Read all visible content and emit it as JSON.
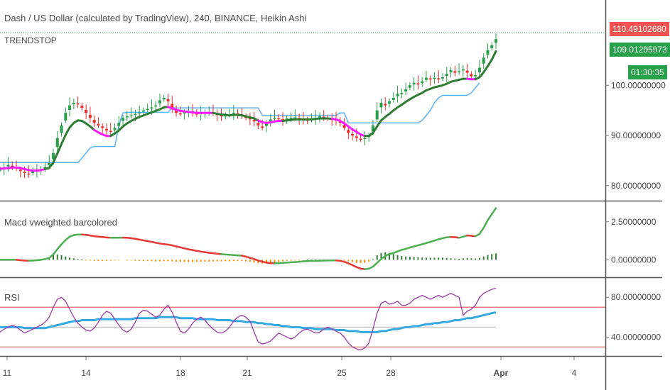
{
  "chart_data": [
    {
      "type": "candlestick",
      "title": "Dash / US Dollar (calculated by TradingView), 240, BINANCE, Heikin Ashi",
      "indicator": "TRENDSTOP",
      "ylim": [
        77,
        117
      ],
      "yticks": [
        {
          "value": 80,
          "label": "80.00000000"
        },
        {
          "value": 90,
          "label": "90.00000000"
        },
        {
          "value": 100,
          "label": "100.00000000"
        }
      ],
      "last_price": {
        "value": 110.49,
        "label": "110.49102680",
        "color": "#f05350"
      },
      "trend_price": {
        "value": 109.01,
        "label": "109.01295973",
        "color": "#27a04a"
      },
      "countdown": "01:30:35",
      "close": [
        83.2,
        83.6,
        84.1,
        83.8,
        83.4,
        82.9,
        82.5,
        82.3,
        82.8,
        83.0,
        83.3,
        83.7,
        84.5,
        86.5,
        89.5,
        92.0,
        94.5,
        96.0,
        96.5,
        96.2,
        95.5,
        94.5,
        93.5,
        92.5,
        92.0,
        91.5,
        91.0,
        90.8,
        91.5,
        92.5,
        93.5,
        93.8,
        94.0,
        94.3,
        94.6,
        95.0,
        95.3,
        95.6,
        96.0,
        97.0,
        97.5,
        96.8,
        95.5,
        94.5,
        94.3,
        94.6,
        94.8,
        94.5,
        94.2,
        94.5,
        94.6,
        94.7,
        94.4,
        94.1,
        93.9,
        94.0,
        94.2,
        94.5,
        94.3,
        94.0,
        93.5,
        93.3,
        92.8,
        92.0,
        91.5,
        92.5,
        93.2,
        93.5,
        93.3,
        93.2,
        93.4,
        93.5,
        93.6,
        93.4,
        93.2,
        93.0,
        93.3,
        93.5,
        93.8,
        93.6,
        93.4,
        93.2,
        93.0,
        92.5,
        91.5,
        90.5,
        90.0,
        89.5,
        89.2,
        89.5,
        90.0,
        92.0,
        95.0,
        96.5,
        96.0,
        96.8,
        97.5,
        98.3,
        98.5,
        99.2,
        100.0,
        100.5,
        100.2,
        100.8,
        101.5,
        101.2,
        101.5,
        101.2,
        101.6,
        102.3,
        103.0,
        102.5,
        102.8,
        103.2,
        102.5,
        101.8,
        102.0,
        103.5,
        105.5,
        107.0,
        108.0,
        109.2
      ],
      "trendstop": [
        83.4,
        83.4,
        83.5,
        83.6,
        83.6,
        83.5,
        83.3,
        83.1,
        83.0,
        83.0,
        83.1,
        83.3,
        83.5,
        84.6,
        86.4,
        88.3,
        90.1,
        91.6,
        92.5,
        93.0,
        92.9,
        92.4,
        91.8,
        91.1,
        90.6,
        90.2,
        89.9,
        89.9,
        90.4,
        91.0,
        91.8,
        92.4,
        92.9,
        93.3,
        93.7,
        94.0,
        94.3,
        94.6,
        94.9,
        95.2,
        95.6,
        95.7,
        95.4,
        95.1,
        94.9,
        94.8,
        94.7,
        94.6,
        94.5,
        94.5,
        94.5,
        94.5,
        94.5,
        94.3,
        94.2,
        94.1,
        94.0,
        94.1,
        94.1,
        94.0,
        93.8,
        93.6,
        93.4,
        93.0,
        92.6,
        92.5,
        92.6,
        92.8,
        92.9,
        92.9,
        93.0,
        93.1,
        93.2,
        93.2,
        93.2,
        93.2,
        93.2,
        93.3,
        93.4,
        93.4,
        93.4,
        93.3,
        93.2,
        92.9,
        92.4,
        91.8,
        91.2,
        90.7,
        90.2,
        89.9,
        89.9,
        90.5,
        91.8,
        93.0,
        93.7,
        94.3,
        95.0,
        95.6,
        96.1,
        96.7,
        97.2,
        97.7,
        98.1,
        98.5,
        99.0,
        99.3,
        99.6,
        99.8,
        100.0,
        100.3,
        100.7,
        100.9,
        101.1,
        101.3,
        101.3,
        101.2,
        101.2,
        101.6,
        102.6,
        103.8,
        105.1,
        106.8
      ],
      "trendstop_bull": [
        0,
        0,
        0,
        0,
        0,
        0,
        0,
        0,
        0,
        0,
        0,
        0,
        1,
        1,
        1,
        1,
        1,
        1,
        1,
        1,
        1,
        1,
        1,
        1,
        0,
        0,
        0,
        0,
        1,
        1,
        1,
        1,
        1,
        1,
        1,
        1,
        1,
        1,
        1,
        1,
        1,
        1,
        0,
        0,
        0,
        0,
        0,
        0,
        0,
        0,
        0,
        0,
        0,
        1,
        1,
        1,
        1,
        1,
        1,
        1,
        1,
        1,
        1,
        1,
        0,
        0,
        0,
        0,
        0,
        0,
        1,
        1,
        1,
        1,
        1,
        1,
        1,
        1,
        1,
        1,
        1,
        1,
        0,
        0,
        0,
        0,
        0,
        0,
        0,
        0,
        1,
        1,
        1,
        1,
        1,
        1,
        1,
        1,
        1,
        1,
        1,
        1,
        1,
        1,
        1,
        1,
        1,
        1,
        1,
        1,
        1,
        1,
        1,
        1,
        1,
        0,
        0,
        1,
        1,
        1,
        1,
        1
      ],
      "support": [
        84.6,
        84.6,
        84.6,
        84.6,
        84.6,
        84.6,
        84.6,
        84.6,
        84.6,
        84.6,
        84.6,
        84.6,
        84.6,
        84.6,
        84.6,
        84.6,
        84.6,
        84.6,
        84.6,
        84.6,
        85.5,
        86.5,
        87.5,
        87.8,
        87.8,
        87.8,
        87.8,
        87.8,
        87.8,
        92.0,
        94.5,
        94.6,
        94.6,
        94.6,
        94.6,
        94.6,
        94.6,
        94.6,
        94.6,
        94.6,
        94.6,
        94.6,
        95.5,
        95.5,
        95.5,
        95.5,
        95.5,
        95.5,
        95.5,
        95.5,
        95.5,
        95.5,
        95.5,
        95.5,
        95.5,
        95.5,
        95.5,
        95.5,
        95.5,
        95.5,
        95.5,
        95.5,
        95.5,
        95.5,
        94.0,
        94.0,
        94.0,
        94.0,
        94.0,
        94.0,
        94.0,
        94.0,
        94.0,
        94.0,
        94.0,
        94.0,
        94.0,
        94.0,
        94.0,
        94.0,
        94.0,
        94.0,
        94.0,
        94.5,
        94.5,
        92.5,
        92.5,
        92.5,
        92.5,
        92.5,
        92.5,
        92.5,
        92.5,
        92.5,
        92.5,
        92.5,
        92.5,
        92.5,
        92.5,
        92.5,
        92.5,
        92.5,
        92.5,
        93.0,
        94.0,
        95.0,
        96.5,
        97.5,
        98.0,
        98.0,
        98.0,
        98.0,
        98.0,
        98.0,
        98.0,
        98.5,
        99.5,
        100.5
      ]
    },
    {
      "type": "line",
      "title": "Macd vweighted barcolored",
      "ylim": [
        -1.1,
        3.7
      ],
      "yticks": [
        {
          "value": 0,
          "label": "0.00000000"
        },
        {
          "value": 2.5,
          "label": "2.50000000"
        }
      ],
      "macd": [
        0.0,
        0.0,
        0.0,
        0.0,
        0.0,
        -0.03,
        -0.05,
        -0.06,
        -0.05,
        -0.03,
        0.0,
        0.05,
        0.12,
        0.35,
        0.7,
        1.02,
        1.3,
        1.52,
        1.62,
        1.66,
        1.66,
        1.64,
        1.6,
        1.55,
        1.52,
        1.5,
        1.47,
        1.45,
        1.45,
        1.45,
        1.46,
        1.45,
        1.42,
        1.38,
        1.33,
        1.28,
        1.23,
        1.18,
        1.12,
        1.07,
        1.03,
        1.0,
        0.95,
        0.88,
        0.82,
        0.75,
        0.69,
        0.64,
        0.59,
        0.54,
        0.5,
        0.46,
        0.43,
        0.4,
        0.37,
        0.35,
        0.33,
        0.31,
        0.29,
        0.27,
        0.21,
        0.13,
        0.05,
        -0.05,
        -0.12,
        -0.18,
        -0.22,
        -0.23,
        -0.22,
        -0.2,
        -0.18,
        -0.16,
        -0.15,
        -0.13,
        -0.1,
        -0.08,
        -0.07,
        -0.07,
        -0.06,
        -0.05,
        -0.04,
        -0.04,
        -0.04,
        -0.07,
        -0.13,
        -0.23,
        -0.35,
        -0.48,
        -0.58,
        -0.62,
        -0.58,
        -0.45,
        -0.2,
        0.05,
        0.25,
        0.38,
        0.45,
        0.55,
        0.65,
        0.72,
        0.8,
        0.88,
        0.95,
        1.02,
        1.1,
        1.18,
        1.26,
        1.35,
        1.42,
        1.48,
        1.5,
        1.48,
        1.45,
        1.52,
        1.6,
        1.58,
        1.55,
        1.7,
        2.1,
        2.6,
        3.0,
        3.4
      ],
      "macd_bull": [
        1,
        1,
        1,
        1,
        1,
        0,
        0,
        0,
        1,
        1,
        1,
        1,
        1,
        1,
        1,
        1,
        1,
        1,
        1,
        1,
        1,
        0,
        0,
        0,
        0,
        0,
        0,
        0,
        1,
        1,
        1,
        0,
        0,
        0,
        0,
        0,
        0,
        0,
        0,
        0,
        0,
        0,
        0,
        0,
        0,
        0,
        0,
        0,
        0,
        0,
        0,
        0,
        0,
        0,
        0,
        1,
        1,
        1,
        1,
        1,
        0,
        0,
        0,
        0,
        0,
        0,
        0,
        0,
        1,
        1,
        1,
        1,
        1,
        1,
        1,
        1,
        1,
        1,
        1,
        1,
        1,
        1,
        1,
        0,
        0,
        0,
        0,
        0,
        0,
        0,
        1,
        1,
        1,
        1,
        1,
        1,
        1,
        1,
        1,
        1,
        1,
        1,
        1,
        1,
        1,
        1,
        1,
        1,
        1,
        1,
        1,
        0,
        0,
        1,
        1,
        0,
        0,
        1,
        1,
        1,
        1,
        1
      ],
      "histogram": [
        0.0,
        0.0,
        0.0,
        0.0,
        -0.02,
        -0.05,
        -0.06,
        -0.06,
        -0.04,
        -0.02,
        0.02,
        0.08,
        0.15,
        0.3,
        0.35,
        0.3,
        0.22,
        0.15,
        0.1,
        0.06,
        0.02,
        -0.02,
        -0.05,
        -0.07,
        -0.08,
        -0.08,
        -0.07,
        -0.06,
        -0.04,
        -0.02,
        0.0,
        -0.02,
        -0.04,
        -0.06,
        -0.07,
        -0.08,
        -0.08,
        -0.09,
        -0.1,
        -0.1,
        -0.09,
        -0.09,
        -0.1,
        -0.12,
        -0.13,
        -0.14,
        -0.14,
        -0.14,
        -0.13,
        -0.13,
        -0.12,
        -0.12,
        -0.11,
        -0.1,
        -0.1,
        -0.09,
        -0.09,
        -0.08,
        -0.08,
        -0.08,
        -0.1,
        -0.13,
        -0.18,
        -0.22,
        -0.25,
        -0.25,
        -0.22,
        -0.18,
        -0.14,
        -0.1,
        -0.07,
        -0.05,
        -0.03,
        -0.02,
        0.0,
        0.02,
        0.02,
        0.02,
        0.02,
        0.02,
        0.02,
        0.02,
        0.01,
        -0.02,
        -0.05,
        -0.1,
        -0.15,
        -0.2,
        -0.22,
        -0.2,
        -0.12,
        0.05,
        0.3,
        0.45,
        0.5,
        0.45,
        0.38,
        0.3,
        0.25,
        0.22,
        0.2,
        0.18,
        0.16,
        0.15,
        0.14,
        0.14,
        0.14,
        0.14,
        0.14,
        0.12,
        0.1,
        0.08,
        0.06,
        0.1,
        0.12,
        0.1,
        0.08,
        0.12,
        0.22,
        0.32,
        0.38,
        0.42
      ]
    },
    {
      "type": "line",
      "title": "RSI",
      "ylim": [
        21,
        98
      ],
      "yticks": [
        {
          "value": 40,
          "label": "40.00000000"
        },
        {
          "value": 80,
          "label": "80.00000000"
        }
      ],
      "levels": [
        30,
        50,
        70
      ],
      "rsi": [
        45,
        48,
        50,
        52,
        50,
        47,
        44,
        46,
        48,
        50,
        52,
        55,
        60,
        70,
        78,
        80,
        76,
        68,
        60,
        54,
        50,
        47,
        46,
        49,
        55,
        62,
        66,
        64,
        58,
        52,
        47,
        45,
        48,
        55,
        64,
        67,
        66,
        63,
        60,
        62,
        68,
        72,
        65,
        55,
        46,
        44,
        48,
        54,
        58,
        60,
        57,
        52,
        48,
        45,
        44,
        46,
        50,
        56,
        60,
        62,
        60,
        56,
        45,
        35,
        33,
        34,
        36,
        40,
        44,
        42,
        40,
        38,
        40,
        44,
        47,
        48,
        46,
        44,
        45,
        48,
        50,
        48,
        46,
        44,
        40,
        34,
        30,
        28,
        27,
        29,
        34,
        48,
        64,
        74,
        76,
        73,
        74,
        76,
        72,
        72,
        74,
        78,
        80,
        82,
        80,
        78,
        80,
        82,
        80,
        82,
        84,
        82,
        80,
        62,
        66,
        68,
        72,
        80,
        84,
        86,
        88,
        89
      ],
      "rsi_ma": [
        50,
        50,
        50,
        50,
        50,
        50,
        49,
        49,
        49,
        49,
        49,
        49,
        50,
        51,
        52,
        53,
        54,
        55,
        56,
        56,
        57,
        57,
        57,
        57,
        58,
        58,
        58,
        58,
        58,
        58,
        58,
        58,
        58,
        59,
        59,
        59,
        59,
        59,
        59,
        60,
        60,
        60,
        60,
        60,
        59,
        59,
        59,
        59,
        58,
        58,
        58,
        58,
        58,
        57,
        57,
        57,
        57,
        56,
        56,
        56,
        55,
        55,
        55,
        54,
        54,
        53,
        53,
        52,
        52,
        51,
        51,
        50,
        50,
        50,
        49,
        49,
        49,
        48,
        48,
        48,
        48,
        48,
        47,
        47,
        47,
        46,
        46,
        46,
        45,
        45,
        45,
        45,
        45,
        46,
        46,
        47,
        48,
        48,
        49,
        50,
        50,
        51,
        51,
        52,
        53,
        53,
        54,
        54,
        55,
        55,
        56,
        57,
        57,
        58,
        59,
        59,
        60,
        61,
        62,
        63,
        64,
        65
      ]
    }
  ],
  "x_axis": {
    "labels": [
      "11",
      "14",
      "18",
      "21",
      "25",
      "28",
      "Apr",
      "4"
    ],
    "bold_label": "Apr"
  },
  "colors": {
    "bull": "#27a04a",
    "bear": "#ef2b2b",
    "trend_bull": "#2e7d32",
    "trend_bear": "#ff19ff",
    "support": "#64b5f6",
    "macd_bull": "#4caf50",
    "macd_bear": "#e53935",
    "hist_bull": "#2e7d32",
    "hist_bear": "#ff8c00",
    "rsi": "#9b3aa8",
    "rsi_ma": "#36a8e0",
    "level": "#f08080",
    "midlevel": "#c8c8c8"
  }
}
